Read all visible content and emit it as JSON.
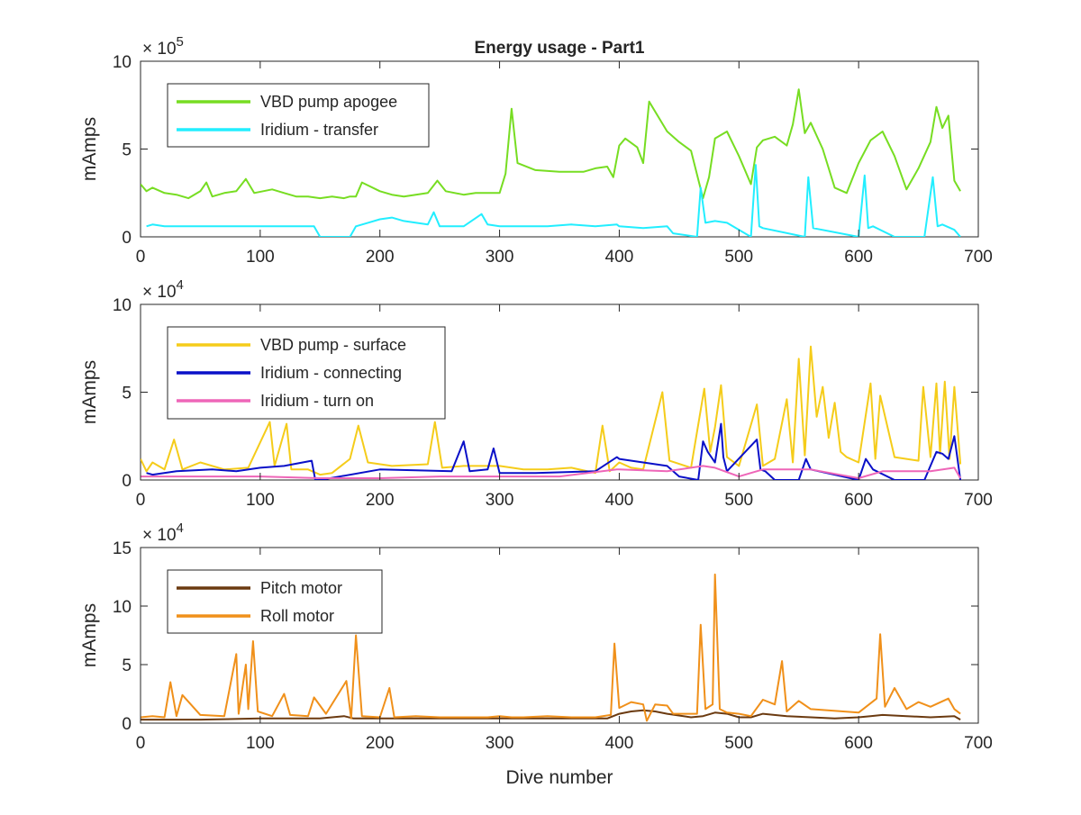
{
  "chart_data": [
    {
      "type": "line",
      "title": "Energy usage - Part1",
      "xlabel": "",
      "ylabel": "mAmps",
      "exponent_base": "× 10",
      "exponent_power": "5",
      "xlim": [
        0,
        700
      ],
      "ylim": [
        0,
        10
      ],
      "x_ticks": [
        0,
        100,
        200,
        300,
        400,
        500,
        600,
        700
      ],
      "x_tick_labels": [
        "0",
        "100",
        "200",
        "300",
        "400",
        "500",
        "600",
        "700"
      ],
      "y_ticks": [
        0,
        5,
        10
      ],
      "y_tick_labels": [
        "0",
        "5",
        "10"
      ],
      "grid": false,
      "legend_position": "top-left",
      "series": [
        {
          "name": "VBD pump apogee",
          "color": "#77dd22",
          "x": [
            0,
            5,
            10,
            20,
            30,
            40,
            50,
            55,
            60,
            70,
            80,
            88,
            95,
            110,
            120,
            130,
            140,
            150,
            160,
            170,
            175,
            180,
            185,
            200,
            210,
            220,
            240,
            248,
            255,
            270,
            280,
            290,
            300,
            305,
            310,
            315,
            330,
            350,
            370,
            380,
            390,
            395,
            400,
            405,
            415,
            420,
            425,
            440,
            450,
            460,
            470,
            475,
            480,
            490,
            500,
            510,
            515,
            520,
            530,
            540,
            545,
            550,
            555,
            560,
            570,
            580,
            590,
            600,
            610,
            620,
            630,
            640,
            650,
            660,
            665,
            670,
            675,
            680,
            685
          ],
          "y": [
            3.0,
            2.6,
            2.8,
            2.5,
            2.4,
            2.2,
            2.6,
            3.1,
            2.3,
            2.5,
            2.6,
            3.3,
            2.5,
            2.7,
            2.5,
            2.3,
            2.3,
            2.2,
            2.3,
            2.2,
            2.3,
            2.3,
            3.1,
            2.6,
            2.4,
            2.3,
            2.5,
            3.2,
            2.6,
            2.4,
            2.5,
            2.5,
            2.5,
            3.6,
            7.3,
            4.2,
            3.8,
            3.7,
            3.7,
            3.9,
            4.0,
            3.4,
            5.2,
            5.6,
            5.1,
            4.2,
            7.7,
            6.0,
            5.4,
            4.9,
            2.2,
            3.4,
            5.6,
            6.0,
            4.6,
            3.0,
            5.1,
            5.5,
            5.7,
            5.2,
            6.4,
            8.4,
            5.9,
            6.5,
            5.0,
            2.8,
            2.5,
            4.2,
            5.5,
            6.0,
            4.6,
            2.7,
            3.9,
            5.4,
            7.4,
            6.2,
            6.9,
            3.2,
            2.6
          ]
        },
        {
          "name": "Iridium - transfer",
          "color": "#22eeff",
          "x": [
            5,
            10,
            20,
            40,
            60,
            80,
            100,
            120,
            145,
            150,
            175,
            180,
            190,
            200,
            210,
            220,
            240,
            245,
            250,
            270,
            285,
            290,
            300,
            320,
            340,
            360,
            380,
            398,
            400,
            420,
            440,
            445,
            465,
            468,
            472,
            480,
            490,
            510,
            514,
            517,
            520,
            555,
            558,
            562,
            600,
            605,
            608,
            612,
            630,
            655,
            662,
            666,
            670,
            680,
            685
          ],
          "y": [
            0.6,
            0.7,
            0.6,
            0.6,
            0.6,
            0.6,
            0.6,
            0.6,
            0.6,
            0.0,
            0.0,
            0.6,
            0.8,
            1.0,
            1.1,
            0.9,
            0.7,
            1.4,
            0.6,
            0.6,
            1.3,
            0.7,
            0.6,
            0.6,
            0.6,
            0.7,
            0.6,
            0.7,
            0.6,
            0.5,
            0.6,
            0.2,
            0.0,
            2.8,
            0.8,
            0.9,
            0.8,
            0.0,
            4.1,
            0.6,
            0.5,
            0.0,
            3.4,
            0.5,
            0.0,
            3.5,
            0.5,
            0.6,
            0.0,
            0.0,
            3.4,
            0.6,
            0.7,
            0.4,
            0.0
          ]
        }
      ]
    },
    {
      "type": "line",
      "title": "",
      "xlabel": "",
      "ylabel": "mAmps",
      "exponent_base": "× 10",
      "exponent_power": "4",
      "xlim": [
        0,
        700
      ],
      "ylim": [
        0,
        10
      ],
      "x_ticks": [
        0,
        100,
        200,
        300,
        400,
        500,
        600,
        700
      ],
      "x_tick_labels": [
        "0",
        "100",
        "200",
        "300",
        "400",
        "500",
        "600",
        "700"
      ],
      "y_ticks": [
        0,
        5,
        10
      ],
      "y_tick_labels": [
        "0",
        "5",
        "10"
      ],
      "grid": false,
      "legend_position": "top-left",
      "series": [
        {
          "name": "VBD pump - surface",
          "color": "#f5cc1a",
          "x": [
            0,
            5,
            10,
            20,
            28,
            35,
            50,
            70,
            90,
            108,
            112,
            122,
            126,
            140,
            150,
            160,
            175,
            182,
            190,
            210,
            240,
            246,
            252,
            270,
            300,
            320,
            340,
            360,
            380,
            386,
            392,
            400,
            410,
            420,
            436,
            442,
            460,
            471,
            476,
            480,
            485,
            490,
            500,
            515,
            520,
            530,
            540,
            545,
            550,
            555,
            560,
            565,
            570,
            575,
            580,
            585,
            590,
            600,
            610,
            614,
            618,
            630,
            650,
            654,
            660,
            665,
            668,
            672,
            676,
            680,
            685
          ],
          "y": [
            1.2,
            0.5,
            1.0,
            0.6,
            2.3,
            0.6,
            1.0,
            0.6,
            0.7,
            3.3,
            0.8,
            3.2,
            0.6,
            0.6,
            0.3,
            0.4,
            1.2,
            3.1,
            1.0,
            0.8,
            0.9,
            3.3,
            0.7,
            0.8,
            0.8,
            0.6,
            0.6,
            0.7,
            0.4,
            3.1,
            0.5,
            1.0,
            0.7,
            0.6,
            5.0,
            1.1,
            0.7,
            5.2,
            1.6,
            3.0,
            5.4,
            1.3,
            0.8,
            4.3,
            0.8,
            1.2,
            4.6,
            1.0,
            6.9,
            1.4,
            7.6,
            3.6,
            5.3,
            2.4,
            4.4,
            1.6,
            1.3,
            1.0,
            5.5,
            1.2,
            4.8,
            1.3,
            1.1,
            5.3,
            1.3,
            5.5,
            1.5,
            5.6,
            1.2,
            5.3,
            0.9
          ]
        },
        {
          "name": "Iridium - connecting",
          "color": "#0a10c8",
          "x": [
            5,
            10,
            30,
            60,
            80,
            100,
            120,
            143,
            146,
            150,
            200,
            260,
            270,
            275,
            290,
            295,
            300,
            330,
            380,
            398,
            400,
            420,
            440,
            450,
            466,
            470,
            474,
            480,
            485,
            487,
            490,
            515,
            518,
            522,
            530,
            550,
            556,
            560,
            600,
            606,
            612,
            630,
            655,
            665,
            670,
            675,
            680,
            685
          ],
          "y": [
            0.4,
            0.3,
            0.5,
            0.6,
            0.5,
            0.7,
            0.8,
            1.1,
            0.0,
            0.0,
            0.6,
            0.5,
            2.2,
            0.5,
            0.6,
            1.8,
            0.4,
            0.4,
            0.5,
            1.3,
            1.2,
            1.0,
            0.8,
            0.2,
            0.0,
            2.2,
            1.6,
            1.0,
            3.2,
            1.3,
            0.5,
            2.3,
            0.6,
            0.5,
            0.0,
            0.0,
            1.2,
            0.6,
            0.0,
            1.2,
            0.6,
            0.0,
            0.0,
            1.6,
            1.5,
            1.2,
            2.5,
            0.0
          ]
        },
        {
          "name": "Iridium - turn on",
          "color": "#ee66b8",
          "x": [
            0,
            50,
            100,
            150,
            200,
            250,
            300,
            350,
            398,
            400,
            440,
            470,
            480,
            500,
            520,
            560,
            600,
            620,
            660,
            680,
            685
          ],
          "y": [
            0.2,
            0.2,
            0.2,
            0.1,
            0.1,
            0.2,
            0.2,
            0.2,
            0.6,
            0.6,
            0.5,
            0.8,
            0.7,
            0.2,
            0.6,
            0.6,
            0.1,
            0.5,
            0.5,
            0.7,
            0.1
          ]
        }
      ]
    },
    {
      "type": "line",
      "title": "",
      "xlabel": "Dive number",
      "ylabel": "mAmps",
      "exponent_base": "× 10",
      "exponent_power": "4",
      "xlim": [
        0,
        700
      ],
      "ylim": [
        0,
        15
      ],
      "x_ticks": [
        0,
        100,
        200,
        300,
        400,
        500,
        600,
        700
      ],
      "x_tick_labels": [
        "0",
        "100",
        "200",
        "300",
        "400",
        "500",
        "600",
        "700"
      ],
      "y_ticks": [
        0,
        5,
        10,
        15
      ],
      "y_tick_labels": [
        "0",
        "5",
        "10",
        "15"
      ],
      "grid": false,
      "legend_position": "top-left",
      "series": [
        {
          "name": "Pitch motor",
          "color": "#6b3a10",
          "x": [
            0,
            50,
            100,
            150,
            170,
            178,
            200,
            300,
            390,
            400,
            410,
            420,
            430,
            440,
            460,
            470,
            480,
            490,
            500,
            510,
            520,
            540,
            560,
            580,
            600,
            610,
            620,
            640,
            660,
            680,
            685
          ],
          "y": [
            0.3,
            0.3,
            0.4,
            0.4,
            0.6,
            0.4,
            0.4,
            0.4,
            0.4,
            0.8,
            1.0,
            1.1,
            1.0,
            0.8,
            0.5,
            0.6,
            0.9,
            0.8,
            0.5,
            0.5,
            0.8,
            0.6,
            0.5,
            0.4,
            0.5,
            0.6,
            0.7,
            0.6,
            0.5,
            0.6,
            0.3
          ]
        },
        {
          "name": "Roll motor",
          "color": "#f0901a",
          "x": [
            0,
            10,
            20,
            25,
            30,
            35,
            50,
            70,
            80,
            82,
            88,
            90,
            94,
            98,
            110,
            120,
            125,
            140,
            145,
            155,
            172,
            176,
            180,
            185,
            200,
            208,
            212,
            230,
            250,
            270,
            290,
            300,
            310,
            320,
            340,
            360,
            380,
            393,
            396,
            400,
            410,
            420,
            423,
            430,
            440,
            445,
            465,
            468,
            472,
            478,
            480,
            484,
            490,
            500,
            510,
            520,
            530,
            536,
            540,
            550,
            560,
            600,
            615,
            618,
            622,
            630,
            640,
            650,
            660,
            675,
            680,
            685
          ],
          "y": [
            0.5,
            0.6,
            0.5,
            3.5,
            0.6,
            2.4,
            0.7,
            0.6,
            5.9,
            0.8,
            5.0,
            1.2,
            7.0,
            1.0,
            0.6,
            2.5,
            0.7,
            0.6,
            2.2,
            0.8,
            3.6,
            0.4,
            7.5,
            0.6,
            0.5,
            3.0,
            0.5,
            0.6,
            0.5,
            0.5,
            0.5,
            0.6,
            0.5,
            0.5,
            0.6,
            0.5,
            0.5,
            0.7,
            6.8,
            1.3,
            1.8,
            1.6,
            0.2,
            1.6,
            1.5,
            0.8,
            0.8,
            8.4,
            1.2,
            1.6,
            12.7,
            1.2,
            0.9,
            0.8,
            0.6,
            2.0,
            1.6,
            5.3,
            1.0,
            1.9,
            1.2,
            0.9,
            2.1,
            7.6,
            1.4,
            3.0,
            1.2,
            1.8,
            1.4,
            2.1,
            1.2,
            0.8
          ]
        }
      ]
    }
  ]
}
